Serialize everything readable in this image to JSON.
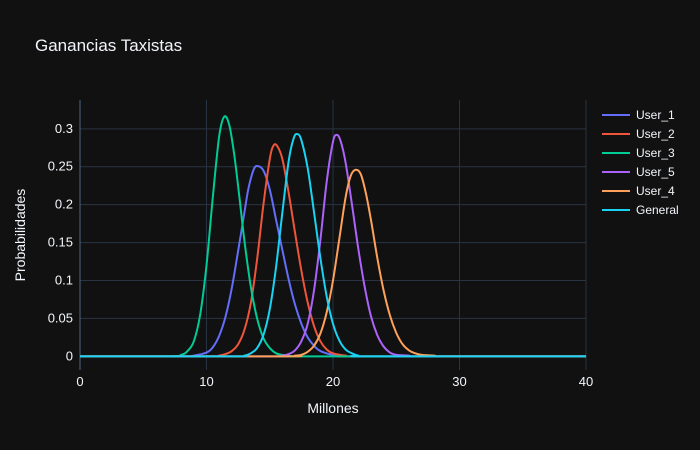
{
  "chart_data": {
    "type": "line",
    "title": "Ganancias Taxistas",
    "xlabel": "Millones",
    "ylabel": "Probabilidades",
    "xlim": [
      0,
      40
    ],
    "ylim": [
      -0.018,
      0.338
    ],
    "x_ticks": [
      0,
      10,
      20,
      30,
      40
    ],
    "y_ticks": [
      0,
      0.05,
      0.1,
      0.15,
      0.2,
      0.25,
      0.3
    ],
    "y_tick_labels": [
      "0",
      "0.05",
      "0.1",
      "0.15",
      "0.2",
      "0.25",
      "0.3"
    ],
    "grid": true,
    "legend_position": "top-right",
    "background": "#111111",
    "series": [
      {
        "name": "User_1",
        "color": "#636efa",
        "x": [
          0,
          8,
          9,
          10,
          10.5,
          11,
          11.5,
          12,
          12.5,
          13,
          13.3,
          13.7,
          14,
          14.5,
          15,
          15.5,
          16,
          16.5,
          17,
          17.5,
          18,
          18.5,
          19,
          20,
          21,
          22,
          40
        ],
        "y": [
          0,
          0,
          0.001,
          0.005,
          0.012,
          0.027,
          0.052,
          0.09,
          0.139,
          0.19,
          0.22,
          0.245,
          0.251,
          0.245,
          0.22,
          0.18,
          0.14,
          0.101,
          0.068,
          0.043,
          0.025,
          0.014,
          0.007,
          0.002,
          0.001,
          0,
          0
        ]
      },
      {
        "name": "User_2",
        "color": "#ef553b",
        "x": [
          0,
          10,
          11,
          11.5,
          12,
          12.5,
          13,
          13.5,
          14,
          14.5,
          15,
          15.3,
          15.6,
          16,
          16.5,
          17,
          17.5,
          18,
          18.5,
          19,
          19.5,
          20,
          21,
          22,
          40
        ],
        "y": [
          0,
          0,
          0.001,
          0.003,
          0.007,
          0.016,
          0.035,
          0.07,
          0.128,
          0.2,
          0.26,
          0.278,
          0.277,
          0.26,
          0.215,
          0.163,
          0.113,
          0.071,
          0.04,
          0.02,
          0.009,
          0.004,
          0.001,
          0,
          0
        ]
      },
      {
        "name": "User_3",
        "color": "#00cc96",
        "x": [
          0,
          7,
          8,
          8.5,
          9,
          9.5,
          10,
          10.5,
          11,
          11.4,
          11.8,
          12.2,
          12.6,
          13,
          13.5,
          14,
          14.5,
          15,
          15.5,
          16,
          17,
          18,
          40
        ],
        "y": [
          0,
          0,
          0.002,
          0.007,
          0.02,
          0.055,
          0.12,
          0.21,
          0.29,
          0.316,
          0.305,
          0.265,
          0.21,
          0.152,
          0.092,
          0.05,
          0.024,
          0.011,
          0.004,
          0.002,
          0,
          0,
          0
        ]
      },
      {
        "name": "User_5",
        "color": "#ab63fa",
        "x": [
          0,
          15,
          16,
          16.5,
          17,
          17.5,
          18,
          18.5,
          19,
          19.5,
          20,
          20.3,
          20.6,
          21,
          21.5,
          22,
          22.5,
          23,
          23.5,
          24,
          24.5,
          25,
          26,
          27,
          40
        ],
        "y": [
          0,
          0,
          0.001,
          0.003,
          0.008,
          0.02,
          0.043,
          0.087,
          0.153,
          0.23,
          0.283,
          0.292,
          0.284,
          0.255,
          0.2,
          0.142,
          0.092,
          0.053,
          0.028,
          0.013,
          0.005,
          0.002,
          0.001,
          0,
          0
        ]
      },
      {
        "name": "User_4",
        "color": "#ffa15a",
        "x": [
          0,
          16,
          17,
          17.5,
          18,
          18.5,
          19,
          19.5,
          20,
          20.5,
          21,
          21.4,
          21.8,
          22.2,
          22.6,
          23,
          23.5,
          24,
          24.5,
          25,
          25.5,
          26,
          26.5,
          27,
          28,
          29,
          40
        ],
        "y": [
          0,
          0,
          0.001,
          0.002,
          0.006,
          0.014,
          0.03,
          0.058,
          0.1,
          0.155,
          0.21,
          0.238,
          0.246,
          0.24,
          0.215,
          0.18,
          0.13,
          0.087,
          0.054,
          0.031,
          0.016,
          0.008,
          0.004,
          0.002,
          0.001,
          0,
          0
        ]
      },
      {
        "name": "General",
        "color": "#19d3f3",
        "x": [
          0,
          12,
          13,
          13.5,
          14,
          14.5,
          15,
          15.5,
          16,
          16.5,
          16.9,
          17.2,
          17.5,
          18,
          18.5,
          19,
          19.5,
          20,
          20.5,
          21,
          21.5,
          22,
          23,
          40
        ],
        "y": [
          0,
          0,
          0.001,
          0.004,
          0.011,
          0.028,
          0.062,
          0.118,
          0.19,
          0.258,
          0.288,
          0.293,
          0.285,
          0.248,
          0.19,
          0.13,
          0.079,
          0.043,
          0.021,
          0.009,
          0.004,
          0.001,
          0,
          0
        ]
      }
    ]
  }
}
